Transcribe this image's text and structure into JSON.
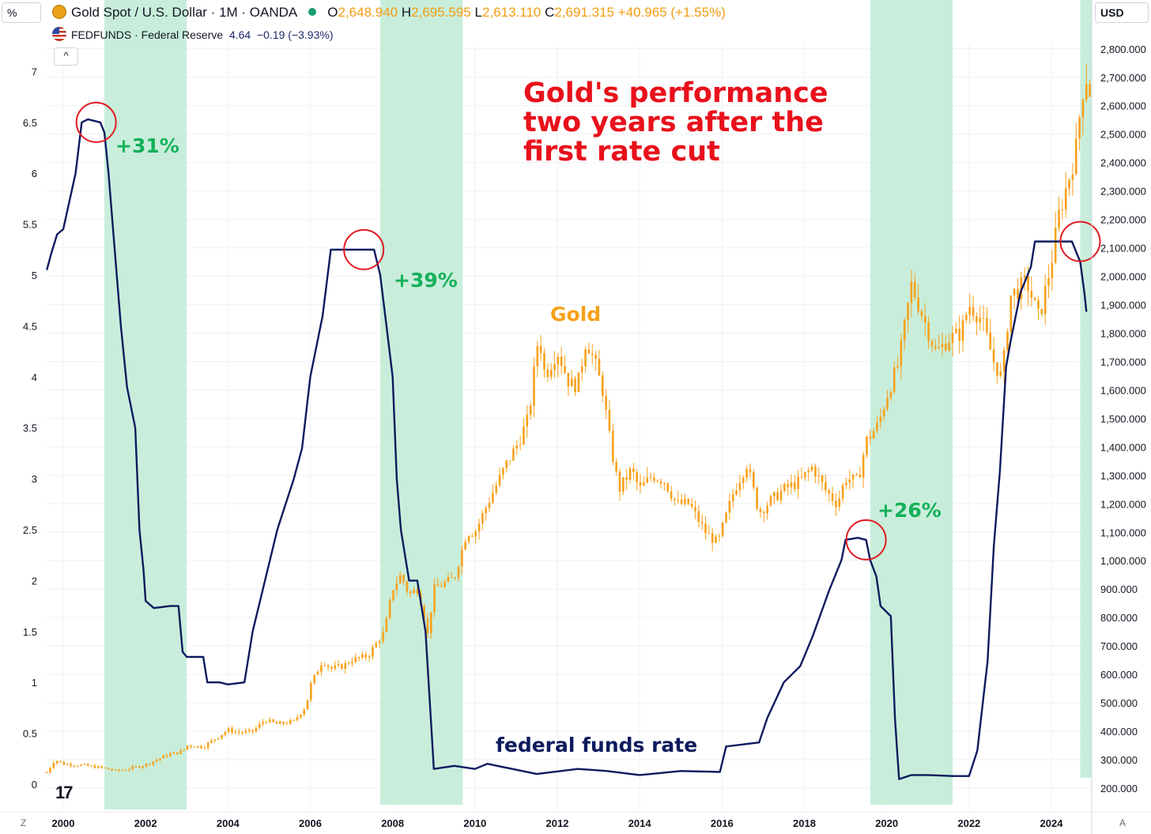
{
  "header": {
    "left_unit": "%",
    "right_unit": "USD",
    "main_series": "Gold Spot / U.S. Dollar · 1M · OANDA",
    "ohlc": {
      "o_label": "O",
      "o": "2,648.940",
      "h_label": "H",
      "h": "2,695.595",
      "l_label": "L",
      "l": "2,613.110",
      "c_label": "C",
      "c": "2,691.315",
      "change": "+40.965 (+1.55%)"
    },
    "overlay_series": "FEDFUNDS · Federal Reserve",
    "overlay_value": "4.64",
    "overlay_change": "−0.19 (−3.93%)",
    "collapse_icon": "^"
  },
  "annotations": {
    "title_line1": "Gold's performance",
    "title_line2": "two years after the",
    "title_line3": "first rate cut",
    "gain_2001": "+31%",
    "gain_2007": "+39%",
    "gain_2019": "+26%",
    "gold_label": "Gold",
    "fed_label": "federal funds rate"
  },
  "footer": {
    "left_corner": "Z",
    "right_corner": "A",
    "logo": "17"
  },
  "colors": {
    "gold": "#f7a11b",
    "fed": "#0d1b5e",
    "shade": "#c8eedb",
    "circle": "#e21b23",
    "gain": "#14b05a",
    "title": "#e8111b"
  },
  "chart_data": {
    "type": "line",
    "x_ticks": [
      "2000",
      "2002",
      "2004",
      "2006",
      "2008",
      "2010",
      "2012",
      "2014",
      "2016",
      "2018",
      "2020",
      "2022",
      "2024"
    ],
    "left_axis": {
      "unit": "%",
      "ticks": [
        "0",
        "0.5",
        "1",
        "1.5",
        "2",
        "2.5",
        "3",
        "3.5",
        "4",
        "4.5",
        "5",
        "5.5",
        "6",
        "6.5",
        "7"
      ],
      "range": [
        0,
        7.5
      ]
    },
    "right_axis": {
      "unit": "USD",
      "ticks": [
        "200.000",
        "300.000",
        "400.000",
        "500.000",
        "600.000",
        "700.000",
        "800.000",
        "900.000",
        "1,000.000",
        "1,100.000",
        "1,200.000",
        "1,300.000",
        "1,400.000",
        "1,500.000",
        "1,600.000",
        "1,700.000",
        "1,800.000",
        "1,900.000",
        "2,000.000",
        "2,100.000",
        "2,200.000",
        "2,300.000",
        "2,400.000",
        "2,500.000",
        "2,600.000",
        "2,700.000",
        "2,800.000"
      ],
      "range": [
        180,
        2800
      ]
    },
    "shaded_periods": [
      [
        2001.0,
        2003.0
      ],
      [
        2007.7,
        2009.7
      ],
      [
        2019.6,
        2021.6
      ],
      [
        2024.7,
        2025.0
      ]
    ],
    "highlight_circles": [
      {
        "x": 2000.8,
        "y": 6.5
      },
      {
        "x": 2007.3,
        "y": 5.25
      },
      {
        "x": 2019.5,
        "y": 2.4
      },
      {
        "x": 2024.7,
        "y": 5.33
      }
    ],
    "series": [
      {
        "name": "federal funds rate",
        "axis": "left",
        "points": [
          [
            1999.6,
            5.05
          ],
          [
            1999.7,
            5.2
          ],
          [
            1999.85,
            5.4
          ],
          [
            2000.0,
            5.45
          ],
          [
            2000.3,
            6.0
          ],
          [
            2000.45,
            6.5
          ],
          [
            2000.6,
            6.53
          ],
          [
            2000.9,
            6.5
          ],
          [
            2001.0,
            6.4
          ],
          [
            2001.1,
            6.0
          ],
          [
            2001.2,
            5.5
          ],
          [
            2001.4,
            4.5
          ],
          [
            2001.55,
            3.9
          ],
          [
            2001.75,
            3.5
          ],
          [
            2001.85,
            2.5
          ],
          [
            2001.95,
            2.1
          ],
          [
            2002.0,
            1.8
          ],
          [
            2002.2,
            1.73
          ],
          [
            2002.6,
            1.75
          ],
          [
            2002.8,
            1.75
          ],
          [
            2002.9,
            1.3
          ],
          [
            2003.0,
            1.25
          ],
          [
            2003.4,
            1.25
          ],
          [
            2003.5,
            1.0
          ],
          [
            2003.8,
            1.0
          ],
          [
            2004.0,
            0.98
          ],
          [
            2004.4,
            1.0
          ],
          [
            2004.6,
            1.5
          ],
          [
            2004.9,
            2.0
          ],
          [
            2005.2,
            2.5
          ],
          [
            2005.6,
            3.0
          ],
          [
            2005.8,
            3.3
          ],
          [
            2006.0,
            4.0
          ],
          [
            2006.3,
            4.6
          ],
          [
            2006.5,
            5.25
          ],
          [
            2006.8,
            5.25
          ],
          [
            2007.0,
            5.25
          ],
          [
            2007.3,
            5.25
          ],
          [
            2007.55,
            5.25
          ],
          [
            2007.7,
            5.0
          ],
          [
            2007.85,
            4.5
          ],
          [
            2008.0,
            4.0
          ],
          [
            2008.1,
            3.0
          ],
          [
            2008.2,
            2.5
          ],
          [
            2008.4,
            2.0
          ],
          [
            2008.6,
            2.0
          ],
          [
            2008.8,
            1.5
          ],
          [
            2008.95,
            0.5
          ],
          [
            2009.0,
            0.15
          ],
          [
            2009.5,
            0.18
          ],
          [
            2010.0,
            0.15
          ],
          [
            2010.3,
            0.2
          ],
          [
            2011.5,
            0.1
          ],
          [
            2012.5,
            0.15
          ],
          [
            2013.2,
            0.13
          ],
          [
            2014.0,
            0.09
          ],
          [
            2015.0,
            0.13
          ],
          [
            2015.95,
            0.12
          ],
          [
            2016.1,
            0.37
          ],
          [
            2016.9,
            0.41
          ],
          [
            2017.1,
            0.65
          ],
          [
            2017.5,
            1.0
          ],
          [
            2017.9,
            1.16
          ],
          [
            2018.2,
            1.45
          ],
          [
            2018.6,
            1.9
          ],
          [
            2018.9,
            2.2
          ],
          [
            2019.0,
            2.4
          ],
          [
            2019.3,
            2.42
          ],
          [
            2019.5,
            2.4
          ],
          [
            2019.6,
            2.2
          ],
          [
            2019.75,
            2.04
          ],
          [
            2019.85,
            1.75
          ],
          [
            2020.1,
            1.65
          ],
          [
            2020.2,
            0.65
          ],
          [
            2020.3,
            0.05
          ],
          [
            2020.6,
            0.09
          ],
          [
            2021.0,
            0.09
          ],
          [
            2021.6,
            0.08
          ],
          [
            2022.0,
            0.08
          ],
          [
            2022.2,
            0.33
          ],
          [
            2022.45,
            1.21
          ],
          [
            2022.6,
            2.33
          ],
          [
            2022.75,
            3.08
          ],
          [
            2022.9,
            4.1
          ],
          [
            2023.0,
            4.33
          ],
          [
            2023.25,
            4.83
          ],
          [
            2023.5,
            5.08
          ],
          [
            2023.6,
            5.33
          ],
          [
            2024.0,
            5.33
          ],
          [
            2024.5,
            5.33
          ],
          [
            2024.7,
            5.13
          ],
          [
            2024.8,
            4.83
          ],
          [
            2024.85,
            4.64
          ]
        ]
      },
      {
        "name": "Gold",
        "axis": "right",
        "points": [
          [
            1999.6,
            255
          ],
          [
            1999.8,
            300
          ],
          [
            2000.0,
            285
          ],
          [
            2000.5,
            280
          ],
          [
            2001.0,
            270
          ],
          [
            2001.3,
            260
          ],
          [
            2001.8,
            275
          ],
          [
            2002.0,
            282
          ],
          [
            2002.5,
            315
          ],
          [
            2002.9,
            330
          ],
          [
            2003.0,
            350
          ],
          [
            2003.4,
            345
          ],
          [
            2003.8,
            385
          ],
          [
            2004.0,
            405
          ],
          [
            2004.3,
            395
          ],
          [
            2004.6,
            400
          ],
          [
            2004.9,
            440
          ],
          [
            2005.2,
            425
          ],
          [
            2005.6,
            435
          ],
          [
            2005.9,
            490
          ],
          [
            2006.0,
            560
          ],
          [
            2006.3,
            650
          ],
          [
            2006.5,
            620
          ],
          [
            2006.8,
            630
          ],
          [
            2007.0,
            650
          ],
          [
            2007.4,
            665
          ],
          [
            2007.8,
            750
          ],
          [
            2008.0,
            900
          ],
          [
            2008.2,
            950
          ],
          [
            2008.4,
            880
          ],
          [
            2008.6,
            900
          ],
          [
            2008.75,
            820
          ],
          [
            2008.85,
            740
          ],
          [
            2009.0,
            900
          ],
          [
            2009.5,
            940
          ],
          [
            2009.8,
            1100
          ],
          [
            2010.0,
            1100
          ],
          [
            2010.4,
            1230
          ],
          [
            2010.8,
            1350
          ],
          [
            2011.0,
            1400
          ],
          [
            2011.3,
            1500
          ],
          [
            2011.55,
            1800
          ],
          [
            2011.7,
            1650
          ],
          [
            2012.0,
            1740
          ],
          [
            2012.3,
            1620
          ],
          [
            2012.5,
            1620
          ],
          [
            2012.7,
            1780
          ],
          [
            2012.9,
            1700
          ],
          [
            2013.1,
            1600
          ],
          [
            2013.3,
            1400
          ],
          [
            2013.5,
            1250
          ],
          [
            2013.8,
            1320
          ],
          [
            2014.0,
            1250
          ],
          [
            2014.3,
            1300
          ],
          [
            2014.6,
            1280
          ],
          [
            2014.9,
            1200
          ],
          [
            2015.2,
            1200
          ],
          [
            2015.6,
            1100
          ],
          [
            2015.9,
            1060
          ],
          [
            2016.0,
            1110
          ],
          [
            2016.3,
            1250
          ],
          [
            2016.6,
            1340
          ],
          [
            2016.9,
            1170
          ],
          [
            2017.1,
            1200
          ],
          [
            2017.5,
            1250
          ],
          [
            2017.9,
            1280
          ],
          [
            2018.2,
            1330
          ],
          [
            2018.5,
            1250
          ],
          [
            2018.8,
            1200
          ],
          [
            2019.0,
            1290
          ],
          [
            2019.3,
            1280
          ],
          [
            2019.5,
            1420
          ],
          [
            2019.8,
            1480
          ],
          [
            2020.0,
            1580
          ],
          [
            2020.3,
            1700
          ],
          [
            2020.6,
            1970
          ],
          [
            2020.9,
            1850
          ],
          [
            2021.2,
            1730
          ],
          [
            2021.5,
            1780
          ],
          [
            2021.8,
            1800
          ],
          [
            2022.0,
            1900
          ],
          [
            2022.3,
            1850
          ],
          [
            2022.6,
            1700
          ],
          [
            2022.8,
            1640
          ],
          [
            2023.0,
            1930
          ],
          [
            2023.4,
            1980
          ],
          [
            2023.7,
            1850
          ],
          [
            2023.9,
            1980
          ],
          [
            2024.0,
            2050
          ],
          [
            2024.2,
            2230
          ],
          [
            2024.4,
            2330
          ],
          [
            2024.6,
            2450
          ],
          [
            2024.75,
            2650
          ],
          [
            2024.85,
            2700
          ],
          [
            2024.95,
            2640
          ]
        ]
      }
    ]
  }
}
